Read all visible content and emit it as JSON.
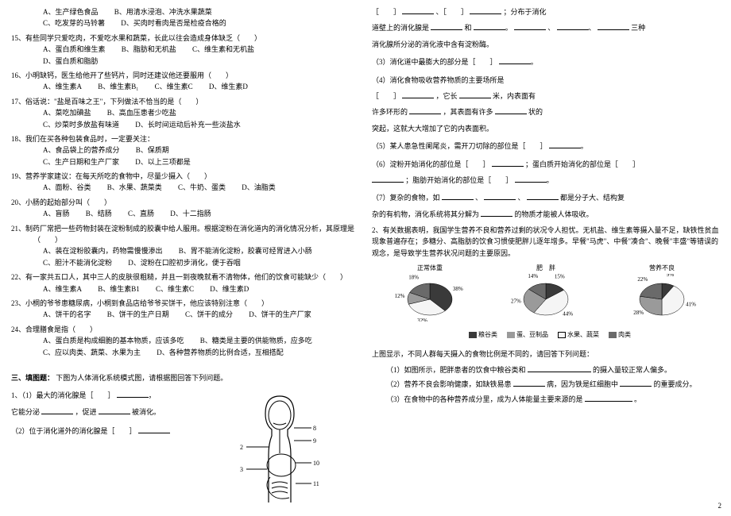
{
  "page_number": "2",
  "left": {
    "q14_opts": {
      "A": "A、生产绿色食品",
      "B": "B、用清水浸泡、冲洗水果蔬菜",
      "C": "C、吃发芽的马铃薯",
      "D": "D、买肉时看肉是否是检疫合格的"
    },
    "q15": {
      "text": "15、有些同学只爱吃肉，不爱吃水果和蔬菜，长此以往会造成身体缺乏（　　）",
      "A": "A、蛋白质和维生素",
      "B": "B、脂肪和无机盐",
      "C": "C、维生素和无机盐",
      "D": "D、蛋白质和脂肪"
    },
    "q16": {
      "text": "16、小明缺钙，医生给他开了些钙片，同时还建议他还要服用（　　）",
      "A": "A、维生素A",
      "B": "B、维生素B₁",
      "C": "C、维生素C",
      "D": "D、维生素D"
    },
    "q17": {
      "text": "17、俗话说：\"盐是百味之王\"，下列做法不恰当的是（　　）",
      "A": "A、菜吃加碘盐",
      "B": "B、高血压患者少吃盐",
      "C": "C、炒菜时多放盐有味道",
      "D": "D、长时间运动后补充一些淡盐水"
    },
    "q18": {
      "text": "18、我们在买各种包装食品时，一定要关注：",
      "A": "A、食品袋上的营养成分",
      "B": "B、保质期",
      "C": "C、生产日期和生产厂家",
      "D": "D、以上三项都是"
    },
    "q19": {
      "text": "19、营养学家建议：在每天所吃的食物中，尽量少摄入（　　）",
      "A": "A、面粉、谷类",
      "B": "B、水果、蔬菜类",
      "C": "C、牛奶、蛋类",
      "D": "D、油脂类"
    },
    "q20": {
      "text": "20、小肠的起始部分叫（　　）",
      "A": "A、盲肠",
      "B": "B、结肠",
      "C": "C、直肠",
      "D": "D、十二指肠"
    },
    "q21": {
      "text": "21、制药厂常把一些药物封装在淀粉制成的胶囊中给人服用。根据淀粉在消化道内的消化情况分析，其原理是（　　）",
      "A": "A、装在淀粉胶囊内，药物需慢慢渗出",
      "B": "B、胃不能消化淀粉，胶囊可经胃进入小肠",
      "C": "C、胆汁不能消化淀粉",
      "D": "D、淀粉在口腔初步消化，便于吞咽"
    },
    "q22": {
      "text": "22、有一家共五口人，其中三人的皮肤很粗糙，并且一到夜晚就看不清物体，他们的饮食可能缺少（　　）",
      "A": "A、维生素A",
      "B": "B、维生素B1",
      "C": "C、维生素C",
      "D": "D、维生素D"
    },
    "q23": {
      "text": "23、小桐的爷爷患糖尿病，小桐到食品店给爷爷买饼干，他应该特别注意（　　）",
      "A": "A、饼干的名字",
      "B": "B、饼干的生产日期",
      "C": "C、饼干的成分",
      "D": "D、饼干的生产厂家"
    },
    "q24": {
      "text": "24、合理膳食是指（　　）",
      "A": "A、蛋白质是构成细胞的基本物质，应该多吃",
      "B": "B、糖类是主要的供能物质，应多吃",
      "C": "C、应以肉类、蔬菜、水果为主",
      "D": "D、各种营养物质的比例合适，互相搭配"
    },
    "section3_title": "三、填图题：",
    "section3_intro": "下图为人体消化系统模式图，请根据图回答下列问题。",
    "fill_q1_a": "1、（1）最大的消化腺是［　　］",
    "fill_q1_b": "它能分泌",
    "fill_q1_c": "，促进",
    "fill_q1_d": "被消化。",
    "fill_q2": "（2）位于消化道外的消化腺是［　　］",
    "digestive_labels": [
      "8",
      "9",
      "2",
      "10",
      "3",
      "11"
    ]
  },
  "right": {
    "cont1_a": "［　　］",
    "cont1_b": "、［　　］",
    "cont1_c": "；分布于消化",
    "cont1_d": "道壁上的消化腺是",
    "cont1_e": "和",
    "cont1_f": "、",
    "cont1_g": "三种",
    "cont1_h": "消化腺所分泌的消化液中含有淀粉酶。",
    "q3": "（3）消化道中最膨大的部分是［　　］",
    "q4_a": "（4）消化食物吸收营养物质的主要场所是",
    "q4_b": "［　　］",
    "q4_c": "，它长",
    "q4_d": "米，内表面有",
    "q4_e": "许多环形的",
    "q4_f": "，其表面有许多",
    "q4_g": "状的",
    "q4_h": "突起，这就大大增加了它的内表面积。",
    "q5": "（5）某人患急性阑尾炎，需开刀切除的部位是［　　］",
    "q6_a": "（6）淀粉开始消化的部位是［　　］",
    "q6_b": "；蛋白质开始消化的部位是［　　］",
    "q6_c": "；脂肪开始消化的部位是［　　］",
    "q7_a": "（7）复杂的食物，如",
    "q7_b": "、",
    "q7_c": "、",
    "q7_d": "都是分子大、结构复",
    "q7_e": "杂的有机物，消化系统将其分解为",
    "q7_f": "的物质才能被人体吸收。",
    "big2": "2、有关数据表明，我国学生营养不良和营养过剩的状况令人担忧。无机盐、维生素等摄入量不足，缺铁性贫血现象普遍存在；多糖分、高脂肪的饮食习惯使肥胖儿逐年增多。早餐\"马虎\"、中餐\"凑合\"、晚餐\"丰盛\"等错误的观念，是导致学生营养状况问题的主要原因。",
    "chart_titles": [
      "正常体重",
      "肥　胖",
      "营养不良"
    ],
    "chart_data": {
      "colors": {
        "grain": "#3a3a3a",
        "bean": "#9a9a9a",
        "fruit": "#f5f5f5",
        "meat": "#6a6a6a"
      },
      "normal": {
        "grain": 38,
        "bean": 12,
        "fruit": 32,
        "meat": 18
      },
      "fat": {
        "grain": 15,
        "bean": 27,
        "fruit": 44,
        "meat": 14
      },
      "poor": {
        "grain": 9,
        "bean": 28,
        "fruit": 41,
        "meat": 22
      }
    },
    "legend": [
      "粮谷类",
      "蛋、豆制品",
      "水果、蔬菜",
      "肉类"
    ],
    "after_chart": "上图显示，不同人群每天摄入的食物比例是不同的，请回答下列问题：",
    "sub1_a": "（1）如图所示，肥胖患者的饮食中粮谷类和",
    "sub1_b": "的摄入量较正常人偏多。",
    "sub2_a": "（2）营养不良会影响健康，如缺铁易患",
    "sub2_b": "病，因为铁是红细胞中",
    "sub2_c": "的重要成分。",
    "sub3_a": "（3）在食物中的各种营养成分里，成为人体能量主要来源的是",
    "sub3_b": "。"
  }
}
